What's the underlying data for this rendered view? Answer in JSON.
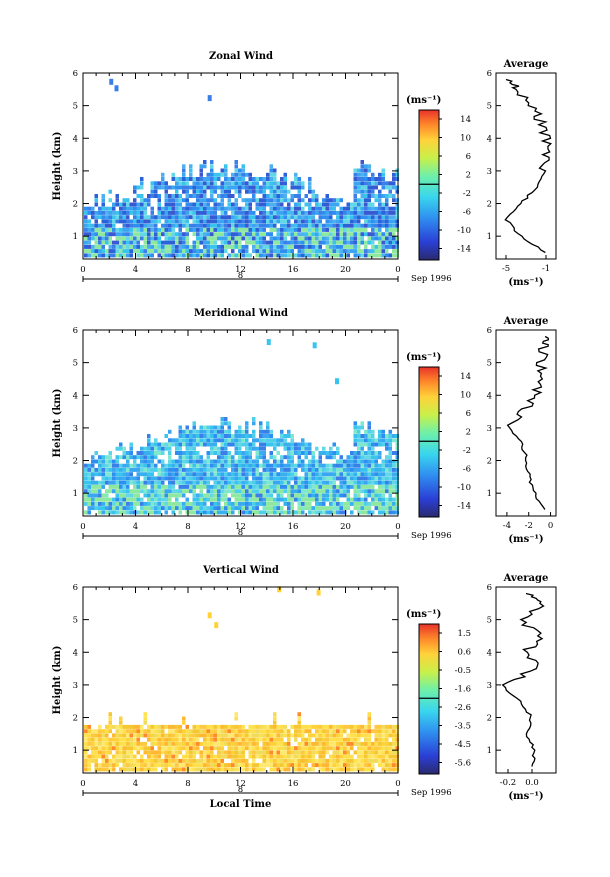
{
  "shared": {
    "ylabel": "Height (km)",
    "y_ticks": [
      "1",
      "2",
      "3",
      "4",
      "5",
      "6"
    ],
    "time_ticks": [
      "0",
      "4",
      "8",
      "12",
      "16",
      "20",
      "0"
    ],
    "day_label": "8",
    "date_label": "Sep 1996",
    "unit_label": "(ms⁻¹)",
    "avg_xlabel": "(ms⁻¹)",
    "avg_title": "Average",
    "xlabel_bottom": "Local Time"
  },
  "chart_data": [
    {
      "type": "heatmap",
      "title": "Zonal Wind",
      "xlabel": "",
      "ylabel": "Height (km)",
      "xlim": [
        0,
        24
      ],
      "ylim": [
        0.3,
        6
      ],
      "colorbar_ticks": [
        "14",
        "10",
        "6",
        "2",
        "-2",
        "-6",
        "-10",
        "-14"
      ],
      "colorbar_range": [
        -16,
        16
      ],
      "profile": {
        "title": "Average",
        "xlabel": "(ms⁻¹)",
        "xticks": [
          "-5",
          "-1"
        ],
        "xlim": [
          -6,
          0
        ],
        "heights": [
          0.5,
          1.0,
          1.5,
          2.0,
          2.5,
          3.0,
          3.5,
          4.0,
          4.5,
          5.0,
          5.5,
          5.8
        ],
        "values": [
          -1.0,
          -3.5,
          -5.0,
          -3.5,
          -2.0,
          -1.2,
          -0.8,
          -1.0,
          -1.5,
          -2.5,
          -3.8,
          -5.0
        ]
      }
    },
    {
      "type": "heatmap",
      "title": "Meridional Wind",
      "xlabel": "",
      "ylabel": "Height (km)",
      "xlim": [
        0,
        24
      ],
      "ylim": [
        0.3,
        6
      ],
      "colorbar_ticks": [
        "14",
        "10",
        "6",
        "2",
        "-2",
        "-6",
        "-10",
        "-14"
      ],
      "colorbar_range": [
        -16,
        16
      ],
      "profile": {
        "title": "Average",
        "xlabel": "(ms⁻¹)",
        "xticks": [
          "-4",
          "-2",
          "0"
        ],
        "xlim": [
          -5,
          0.5
        ],
        "heights": [
          0.5,
          1.0,
          1.5,
          2.0,
          2.5,
          3.0,
          3.5,
          4.0,
          4.5,
          5.0,
          5.5,
          5.8
        ],
        "values": [
          -0.5,
          -1.5,
          -2.0,
          -2.2,
          -2.6,
          -3.8,
          -2.5,
          -1.2,
          -1.0,
          -0.8,
          -0.6,
          -0.5
        ]
      }
    },
    {
      "type": "heatmap",
      "title": "Vertical Wind",
      "xlabel": "Local Time",
      "ylabel": "Height (km)",
      "xlim": [
        0,
        24
      ],
      "ylim": [
        0.3,
        6
      ],
      "colorbar_ticks": [
        "1.5",
        "0.6",
        "-0.5",
        "-1.6",
        "-2.6",
        "-3.5",
        "-4.5",
        "-5.6"
      ],
      "colorbar_range": [
        -6.1,
        2.0
      ],
      "profile": {
        "title": "Average",
        "xlabel": "(ms⁻¹)",
        "xticks": [
          "-0.2",
          "0.0"
        ],
        "xlim": [
          -0.3,
          0.2
        ],
        "heights": [
          0.5,
          1.0,
          1.5,
          2.0,
          2.5,
          3.0,
          3.5,
          4.0,
          4.5,
          5.0,
          5.5,
          5.8
        ],
        "values": [
          0.0,
          0.02,
          -0.05,
          0.0,
          -0.1,
          -0.25,
          0.05,
          -0.05,
          0.08,
          -0.1,
          0.1,
          -0.05
        ]
      }
    }
  ]
}
